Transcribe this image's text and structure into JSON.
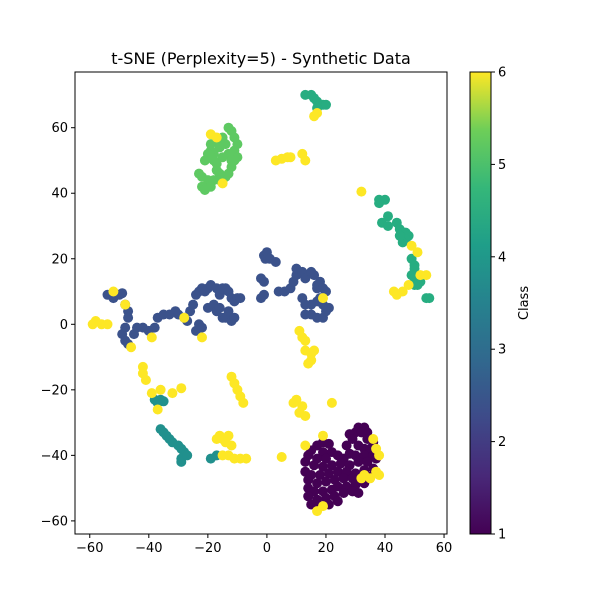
{
  "chart_data": {
    "type": "scatter",
    "title": "t-SNE (Perplexity=5) - Synthetic Data",
    "xlabel": "",
    "ylabel": "",
    "xlim": [
      -65,
      61
    ],
    "ylim": [
      -64,
      77
    ],
    "xticks": [
      -60,
      -40,
      -20,
      0,
      20,
      40,
      60
    ],
    "yticks": [
      -60,
      -40,
      -20,
      0,
      20,
      40,
      60
    ],
    "grid": false,
    "colorbar": {
      "label": "Class",
      "range": [
        1,
        6
      ],
      "ticks": [
        1,
        2,
        3,
        4,
        5,
        6
      ],
      "colormap": "viridis"
    },
    "series": [
      {
        "class": 1,
        "color": "#440154",
        "points": [
          [
            31,
            -31.5
          ],
          [
            33,
            -31.5
          ],
          [
            34,
            -33
          ],
          [
            30,
            -33
          ],
          [
            28,
            -33.5
          ],
          [
            32,
            -33
          ],
          [
            29,
            -35
          ],
          [
            34,
            -35
          ],
          [
            36,
            -36
          ],
          [
            31,
            -37
          ],
          [
            27,
            -37
          ],
          [
            33,
            -38
          ],
          [
            35,
            -38
          ],
          [
            19,
            -36
          ],
          [
            21,
            -36.5
          ],
          [
            17,
            -37
          ],
          [
            15,
            -38.5
          ],
          [
            19,
            -39
          ],
          [
            22,
            -39
          ],
          [
            14,
            -40
          ],
          [
            17,
            -41
          ],
          [
            20,
            -41
          ],
          [
            24,
            -40
          ],
          [
            26,
            -41
          ],
          [
            28,
            -39.5
          ],
          [
            30,
            -40
          ],
          [
            33,
            -40
          ],
          [
            36,
            -40
          ],
          [
            13,
            -42
          ],
          [
            16,
            -43
          ],
          [
            19,
            -43.5
          ],
          [
            22,
            -43
          ],
          [
            25,
            -42.5
          ],
          [
            28,
            -43
          ],
          [
            31,
            -42
          ],
          [
            34,
            -42
          ],
          [
            37,
            -41
          ],
          [
            13,
            -45
          ],
          [
            15,
            -46
          ],
          [
            18,
            -46
          ],
          [
            21,
            -45.5
          ],
          [
            24,
            -45
          ],
          [
            27,
            -45
          ],
          [
            30,
            -45.5
          ],
          [
            33,
            -44.5
          ],
          [
            36,
            -44
          ],
          [
            14,
            -47.5
          ],
          [
            17,
            -48.5
          ],
          [
            20,
            -48
          ],
          [
            23,
            -47.5
          ],
          [
            26,
            -47
          ],
          [
            29,
            -47
          ],
          [
            32,
            -47
          ],
          [
            35,
            -46.5
          ],
          [
            14,
            -50
          ],
          [
            16,
            -51
          ],
          [
            19,
            -51
          ],
          [
            22,
            -50.5
          ],
          [
            24,
            -49.5
          ],
          [
            27,
            -49.5
          ],
          [
            30,
            -49
          ],
          [
            33,
            -48.5
          ],
          [
            14,
            -52.5
          ],
          [
            17,
            -53.5
          ],
          [
            20,
            -53
          ],
          [
            23,
            -52.5
          ],
          [
            26,
            -51.5
          ],
          [
            29,
            -51
          ],
          [
            31,
            -51.5
          ],
          [
            15,
            -55
          ],
          [
            18,
            -55.5
          ],
          [
            21,
            -55
          ],
          [
            24,
            -54
          ]
        ]
      },
      {
        "class": 2,
        "color": "#3b528b",
        "points": [
          [
            -54,
            9
          ],
          [
            -52,
            8
          ],
          [
            -50,
            9
          ],
          [
            -49,
            9.5
          ],
          [
            -48,
            6
          ],
          [
            -47,
            4
          ],
          [
            -47,
            2
          ],
          [
            -48,
            -1
          ],
          [
            -49,
            -3
          ],
          [
            -48,
            -5
          ],
          [
            -47,
            -6
          ],
          [
            -45,
            -3
          ],
          [
            -44,
            -1
          ],
          [
            -42,
            -1
          ],
          [
            -40,
            -2
          ],
          [
            -38,
            -1
          ],
          [
            -37,
            2
          ],
          [
            -35,
            3
          ],
          [
            -33,
            3
          ],
          [
            -31,
            4
          ],
          [
            -30,
            3
          ],
          [
            -28,
            2
          ],
          [
            -27,
            1
          ],
          [
            -26,
            4
          ],
          [
            -25,
            6
          ],
          [
            -24,
            9
          ],
          [
            -23,
            10
          ],
          [
            -22,
            11
          ],
          [
            -21,
            10
          ],
          [
            -20,
            11
          ],
          [
            -19,
            12
          ],
          [
            -17,
            11
          ],
          [
            -16,
            9
          ],
          [
            -15,
            11
          ],
          [
            -14,
            11
          ],
          [
            -13,
            10
          ],
          [
            -12,
            8
          ],
          [
            -11,
            7
          ],
          [
            -10,
            8
          ],
          [
            -9,
            8
          ],
          [
            -24,
            -2
          ],
          [
            -23,
            0
          ],
          [
            -22,
            -1
          ],
          [
            -20,
            5
          ],
          [
            -18,
            6
          ],
          [
            -17,
            4
          ],
          [
            -16,
            5
          ],
          [
            -15,
            2
          ],
          [
            -14,
            2
          ],
          [
            -13,
            4
          ],
          [
            -12,
            1
          ],
          [
            -11,
            2
          ],
          [
            -2,
            8
          ],
          [
            -1,
            9
          ],
          [
            -2,
            14
          ],
          [
            -1,
            13
          ],
          [
            -1,
            21
          ],
          [
            -0.5,
            20
          ],
          [
            0,
            22
          ],
          [
            1,
            20
          ],
          [
            3,
            19
          ],
          [
            4,
            10
          ],
          [
            6,
            10
          ],
          [
            8,
            11
          ],
          [
            9,
            13
          ],
          [
            10,
            15
          ],
          [
            10,
            17
          ],
          [
            12,
            16
          ],
          [
            13,
            14
          ],
          [
            15,
            16
          ],
          [
            16,
            15
          ],
          [
            17,
            12
          ],
          [
            17,
            11
          ],
          [
            18,
            13
          ],
          [
            19,
            11
          ],
          [
            20,
            10
          ],
          [
            18,
            8
          ],
          [
            19,
            6
          ],
          [
            20,
            5
          ],
          [
            21,
            5
          ],
          [
            17,
            7
          ],
          [
            15,
            6
          ],
          [
            13,
            6
          ],
          [
            12,
            8
          ],
          [
            13,
            3
          ],
          [
            15,
            3
          ],
          [
            17,
            2
          ],
          [
            19,
            2
          ],
          [
            20,
            4
          ]
        ]
      },
      {
        "class": 3,
        "color": "#21908d",
        "points": [
          [
            -38,
            -23
          ],
          [
            -36,
            -23
          ],
          [
            -35,
            -23.5
          ],
          [
            -37,
            -24
          ],
          [
            -36,
            -32
          ],
          [
            -35,
            -33
          ],
          [
            -34,
            -34
          ],
          [
            -33,
            -35
          ],
          [
            -32,
            -36
          ],
          [
            -30,
            -37
          ],
          [
            -29,
            -38
          ],
          [
            -28,
            -39
          ],
          [
            -28,
            -40
          ],
          [
            -29,
            -41
          ],
          [
            -29,
            -42
          ],
          [
            -27,
            -40
          ],
          [
            -19,
            -41
          ],
          [
            -17,
            -40
          ]
        ]
      },
      {
        "class": 4,
        "color": "#27ad81",
        "points": [
          [
            13,
            70
          ],
          [
            15,
            70
          ],
          [
            16,
            69
          ],
          [
            17,
            68
          ],
          [
            18,
            67
          ],
          [
            19,
            67
          ],
          [
            20,
            67
          ],
          [
            17,
            66
          ],
          [
            38,
            38
          ],
          [
            40,
            38
          ],
          [
            38,
            37
          ],
          [
            41,
            33
          ],
          [
            39,
            31
          ],
          [
            41,
            30
          ],
          [
            44,
            31
          ],
          [
            45,
            29
          ],
          [
            46,
            28
          ],
          [
            47,
            28
          ],
          [
            48,
            27
          ],
          [
            47,
            26
          ],
          [
            46,
            25
          ],
          [
            45,
            27
          ],
          [
            49,
            20
          ],
          [
            50,
            18
          ],
          [
            50,
            17
          ],
          [
            49,
            15
          ],
          [
            50,
            14
          ],
          [
            51,
            12
          ],
          [
            52,
            13
          ],
          [
            54,
            8
          ],
          [
            55,
            8
          ],
          [
            50,
            12
          ]
        ]
      },
      {
        "class": 5,
        "color": "#5ec962",
        "points": [
          [
            -13,
            60
          ],
          [
            -12,
            59
          ],
          [
            -11,
            57
          ],
          [
            -10,
            55
          ],
          [
            -11,
            53
          ],
          [
            -10,
            51
          ],
          [
            -11,
            50
          ],
          [
            -12,
            48
          ],
          [
            -13,
            46
          ],
          [
            -14,
            45
          ],
          [
            -16,
            46
          ],
          [
            -17,
            47
          ],
          [
            -18,
            44
          ],
          [
            -20,
            44
          ],
          [
            -22,
            45
          ],
          [
            -23,
            46
          ],
          [
            -22,
            42
          ],
          [
            -21,
            41
          ],
          [
            -19,
            42
          ],
          [
            -16,
            44
          ],
          [
            -17,
            49
          ],
          [
            -18,
            52
          ],
          [
            -19,
            53
          ],
          [
            -20,
            52
          ],
          [
            -21,
            50
          ],
          [
            -19,
            55
          ],
          [
            -17,
            56
          ],
          [
            -15,
            57
          ],
          [
            -14,
            55
          ],
          [
            -13,
            52
          ],
          [
            -12,
            50
          ],
          [
            -16,
            54
          ],
          [
            -15,
            51
          ],
          [
            -18,
            50
          ]
        ]
      },
      {
        "class": 6,
        "color": "#fde725",
        "points": [
          [
            -19,
            58
          ],
          [
            -17,
            57
          ],
          [
            -15,
            43
          ],
          [
            3,
            50
          ],
          [
            5,
            50.5
          ],
          [
            7,
            51
          ],
          [
            8,
            51
          ],
          [
            12,
            52
          ],
          [
            13,
            50
          ],
          [
            16,
            63.5
          ],
          [
            17,
            64.5
          ],
          [
            -58,
            1
          ],
          [
            -59,
            0
          ],
          [
            -56,
            0
          ],
          [
            -54,
            0
          ],
          [
            -52,
            10
          ],
          [
            -48,
            6
          ],
          [
            -46,
            -7
          ],
          [
            -39,
            -4
          ],
          [
            -42,
            -13
          ],
          [
            -42,
            -15
          ],
          [
            -41,
            -17
          ],
          [
            -39,
            -21
          ],
          [
            -36,
            -20
          ],
          [
            -32,
            -21
          ],
          [
            -29,
            -19.5
          ],
          [
            -37,
            -26
          ],
          [
            -28,
            2
          ],
          [
            -22,
            -4
          ],
          [
            -12,
            -16
          ],
          [
            -11,
            -18
          ],
          [
            -10,
            -20
          ],
          [
            -9,
            -22
          ],
          [
            -8,
            -24
          ],
          [
            -17,
            -35
          ],
          [
            -16,
            -34
          ],
          [
            -15,
            -35
          ],
          [
            -13,
            -34
          ],
          [
            -14,
            -36
          ],
          [
            -15,
            -40
          ],
          [
            -13,
            -40
          ],
          [
            -11,
            -41
          ],
          [
            -9,
            -41
          ],
          [
            -7,
            -41
          ],
          [
            -12,
            -37
          ],
          [
            5,
            -40.5
          ],
          [
            9,
            -24
          ],
          [
            10,
            -23
          ],
          [
            11,
            -27
          ],
          [
            12,
            -25
          ],
          [
            13,
            -28
          ],
          [
            22,
            -24
          ],
          [
            11,
            -2
          ],
          [
            12,
            -4
          ],
          [
            13,
            -5
          ],
          [
            13,
            -8
          ],
          [
            15,
            -9
          ],
          [
            16,
            -8
          ],
          [
            15,
            -11
          ],
          [
            14,
            -12
          ],
          [
            19,
            8
          ],
          [
            13,
            -37
          ],
          [
            19,
            -34
          ],
          [
            36,
            -35
          ],
          [
            37,
            -38
          ],
          [
            38,
            -40
          ],
          [
            37,
            -45
          ],
          [
            38,
            -46
          ],
          [
            35,
            -47
          ],
          [
            33,
            -46
          ],
          [
            32,
            -47
          ],
          [
            32,
            40.5
          ],
          [
            43,
            10
          ],
          [
            44,
            9
          ],
          [
            46,
            10
          ],
          [
            48,
            12
          ],
          [
            51,
            22
          ],
          [
            49,
            24
          ],
          [
            52,
            15
          ],
          [
            54,
            15
          ],
          [
            17,
            -57
          ],
          [
            19,
            -55.5
          ]
        ]
      }
    ]
  }
}
